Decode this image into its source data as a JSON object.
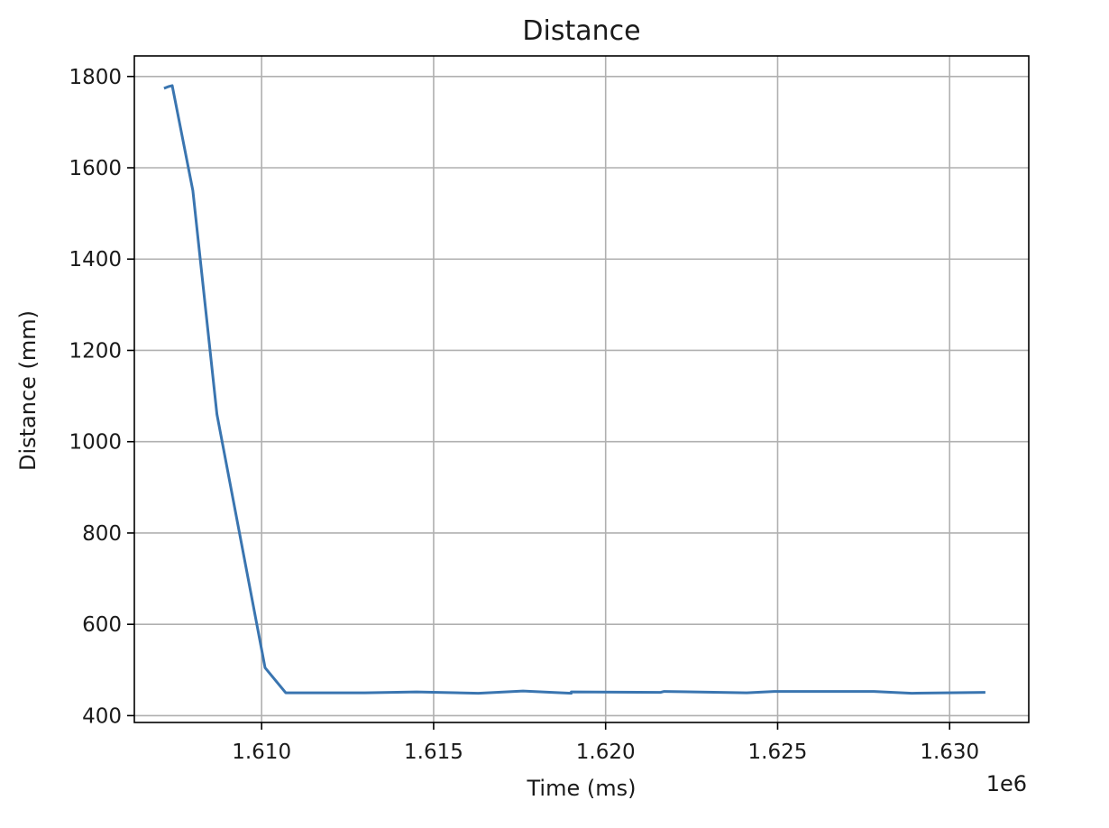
{
  "chart_data": {
    "type": "line",
    "title": "Distance",
    "xlabel": "Time (ms)",
    "ylabel": "Distance (mm)",
    "x_offset_label": "1e6",
    "xlim": [
      1.6063,
      1.6323
    ],
    "ylim": [
      385,
      1845
    ],
    "x_ticks": [
      1.61,
      1.615,
      1.62,
      1.625,
      1.63
    ],
    "x_tick_labels": [
      "1.610",
      "1.615",
      "1.620",
      "1.625",
      "1.630"
    ],
    "y_ticks": [
      400,
      600,
      800,
      1000,
      1200,
      1400,
      1600,
      1800
    ],
    "y_tick_labels": [
      "400",
      "600",
      "800",
      "1000",
      "1200",
      "1400",
      "1600",
      "1800"
    ],
    "grid": true,
    "series": [
      {
        "color": "#3a75b0",
        "x": [
          1.6072,
          1.6073,
          1.6074,
          1.608,
          1.6087,
          1.6101,
          1.6107,
          1.612,
          1.613,
          1.6145,
          1.6163,
          1.6176,
          1.619,
          1.619,
          1.6216,
          1.6217,
          1.6241,
          1.6249,
          1.6278,
          1.6289,
          1.631
        ],
        "y": [
          1775,
          1778,
          1780,
          1550,
          1060,
          505,
          450,
          450,
          450,
          452,
          449,
          454,
          449,
          452,
          451,
          453,
          450,
          453,
          453,
          449,
          451
        ]
      }
    ]
  }
}
